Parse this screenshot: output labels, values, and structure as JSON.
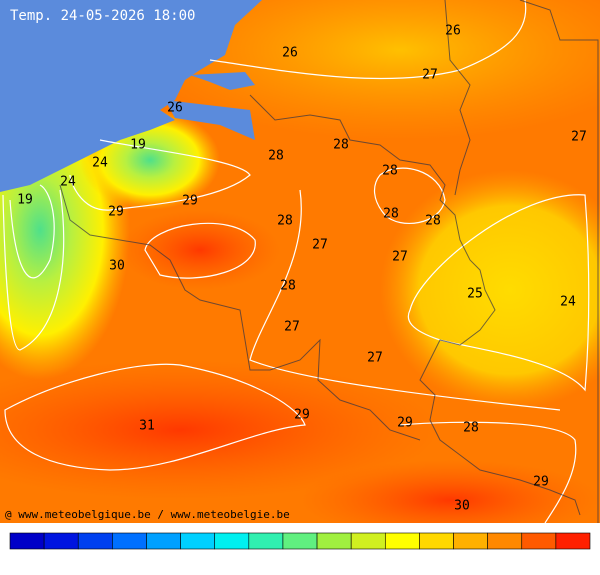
{
  "title": "Temp. 24-05-2026 18:00",
  "credit": "@ www.meteobelgique.be / www.meteobelgie.be",
  "labels": [
    26,
    26,
    27,
    27,
    26,
    19,
    24,
    24,
    19,
    28,
    28,
    28,
    29,
    29,
    28,
    28,
    28,
    27,
    27,
    30,
    28,
    25,
    24,
    27,
    27,
    31,
    29,
    29,
    28,
    29,
    30
  ]
}
